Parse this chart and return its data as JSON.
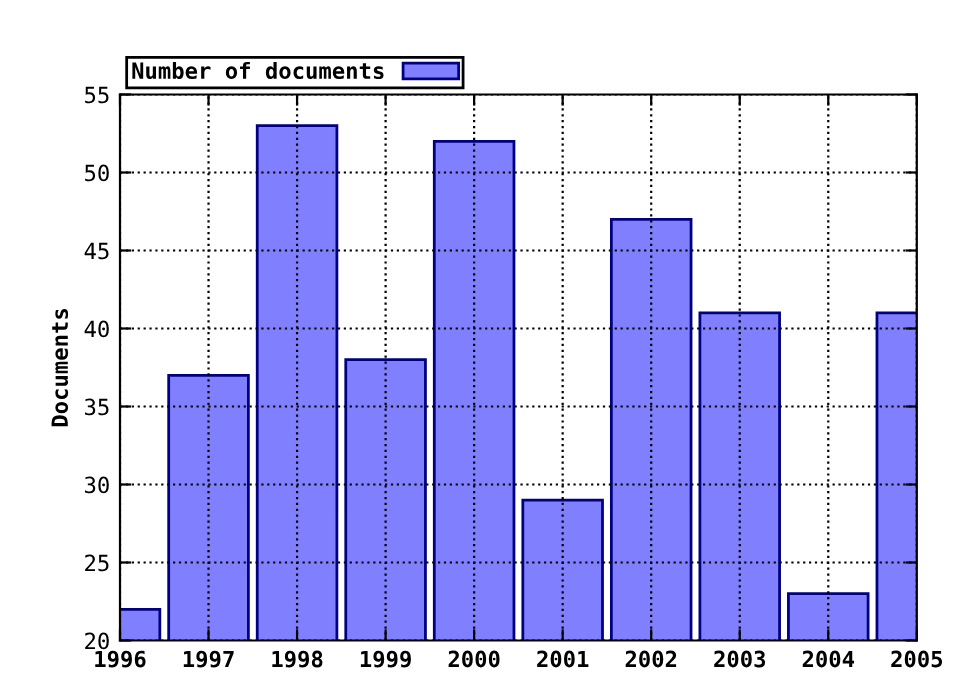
{
  "chart_data": {
    "type": "bar",
    "ylabel": "Documents",
    "x": [
      1996,
      1997,
      1998,
      1999,
      2000,
      2001,
      2002,
      2003,
      2004,
      2005
    ],
    "series": [
      {
        "name": "Number of documents",
        "color": "#8080ff",
        "values": [
          22,
          37,
          53,
          38,
          52,
          29,
          47,
          41,
          23,
          41
        ]
      }
    ],
    "xlim": [
      1996,
      2005
    ],
    "xticks": [
      1996,
      1997,
      1998,
      1999,
      2000,
      2001,
      2002,
      2003,
      2004,
      2005
    ],
    "ylim": [
      20,
      55
    ],
    "yticks": [
      20,
      25,
      30,
      35,
      40,
      45,
      50,
      55
    ],
    "grid": true,
    "legend": "top left"
  }
}
